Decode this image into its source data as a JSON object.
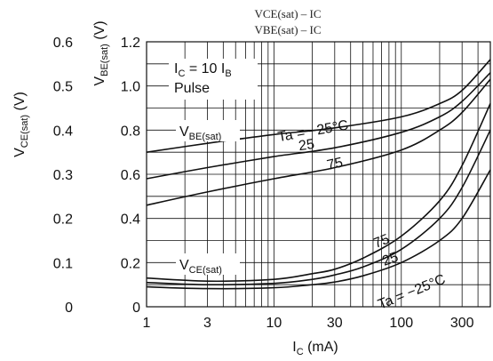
{
  "chart_data": {
    "type": "line",
    "title": "VCE(sat) – IC",
    "subtitle": "VBE(sat) – IC",
    "xlabel": {
      "main": "I",
      "sub": "C",
      "unit": " (mA)"
    },
    "ylabel_left": {
      "main": "V",
      "sub": "CE(sat)",
      "unit": " (V)"
    },
    "ylabel_right": {
      "main": "V",
      "sub": "BE(sat)",
      "unit": " (V)"
    },
    "x_scale": "log",
    "xlim": [
      1,
      500
    ],
    "x_ticks": [
      "1",
      "3",
      "10",
      "30",
      "100",
      "300"
    ],
    "x_tick_values": [
      1,
      3,
      10,
      30,
      100,
      300
    ],
    "ylim_left": [
      0,
      0.6
    ],
    "y_ticks_left": [
      "0",
      "0.1",
      "0.2",
      "0.3",
      "0.4",
      "0.5",
      "0.6"
    ],
    "y_tick_values_left": [
      0,
      0.1,
      0.2,
      0.3,
      0.4,
      0.5,
      0.6
    ],
    "ylim_right": [
      0,
      1.2
    ],
    "y_ticks_right": [
      "0",
      "0.2",
      "0.4",
      "0.6",
      "0.8",
      "1.0",
      "1.2"
    ],
    "y_tick_values_right": [
      0,
      0.2,
      0.4,
      0.6,
      0.8,
      1.0,
      1.2
    ],
    "grid": true,
    "condition": {
      "main": "I",
      "sub": "C",
      "text": " = 10 I",
      "sub2": "B"
    },
    "condition_line2": "Pulse",
    "group_labels": [
      {
        "main": "V",
        "sub": "BE(sat)"
      },
      {
        "main": "V",
        "sub": "CE(sat)"
      }
    ],
    "curve_labels": {
      "vbe": [
        "Ta = −25°C",
        "25",
        "75"
      ],
      "vce": [
        "75",
        "25",
        "Ta = −25°C"
      ]
    },
    "series": [
      {
        "group": "VBE(sat)",
        "temp": "-25",
        "axis": "right",
        "x": [
          1,
          3,
          10,
          30,
          100,
          200,
          300,
          500
        ],
        "y": [
          0.7,
          0.74,
          0.78,
          0.81,
          0.86,
          0.92,
          0.98,
          1.12
        ]
      },
      {
        "group": "VBE(sat)",
        "temp": "25",
        "axis": "right",
        "x": [
          1,
          3,
          10,
          30,
          100,
          200,
          300,
          500
        ],
        "y": [
          0.58,
          0.63,
          0.68,
          0.72,
          0.79,
          0.86,
          0.93,
          1.06
        ]
      },
      {
        "group": "VBE(sat)",
        "temp": "75",
        "axis": "right",
        "x": [
          1,
          3,
          10,
          30,
          100,
          200,
          300,
          500
        ],
        "y": [
          0.46,
          0.52,
          0.58,
          0.63,
          0.71,
          0.8,
          0.88,
          1.03
        ]
      },
      {
        "group": "VCE(sat)",
        "temp": "75",
        "axis": "left",
        "x": [
          1,
          3,
          10,
          20,
          30,
          50,
          100,
          200,
          300,
          500
        ],
        "y": [
          0.065,
          0.058,
          0.062,
          0.075,
          0.085,
          0.11,
          0.16,
          0.24,
          0.32,
          0.46
        ]
      },
      {
        "group": "VCE(sat)",
        "temp": "25",
        "axis": "left",
        "x": [
          1,
          3,
          10,
          20,
          30,
          50,
          100,
          200,
          300,
          500
        ],
        "y": [
          0.055,
          0.05,
          0.053,
          0.062,
          0.072,
          0.09,
          0.13,
          0.2,
          0.27,
          0.4
        ]
      },
      {
        "group": "VCE(sat)",
        "temp": "-25",
        "axis": "left",
        "x": [
          1,
          3,
          10,
          20,
          30,
          50,
          100,
          200,
          300,
          500
        ],
        "y": [
          0.045,
          0.041,
          0.043,
          0.05,
          0.056,
          0.07,
          0.1,
          0.15,
          0.2,
          0.31
        ]
      }
    ]
  }
}
